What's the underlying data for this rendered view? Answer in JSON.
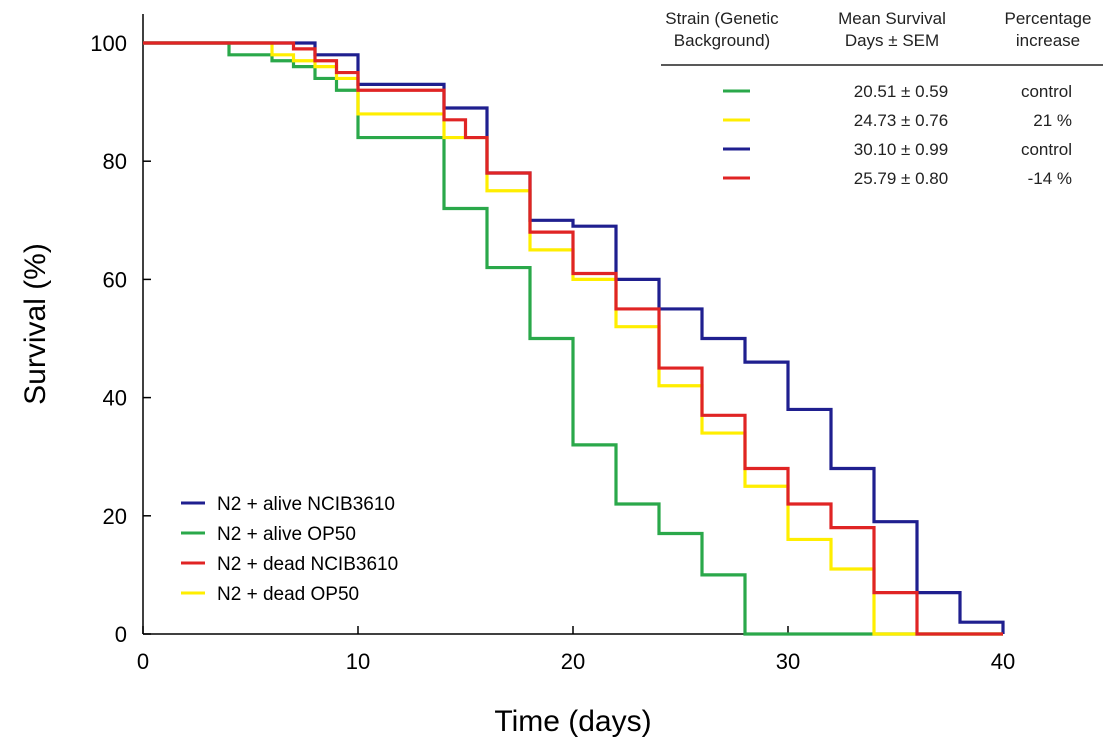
{
  "chart_data": {
    "type": "line",
    "step": true,
    "xlabel": "Time (days)",
    "ylabel": "Survival (%)",
    "xlim": [
      0,
      40
    ],
    "ylim": [
      0,
      100
    ],
    "xticks": [
      "0",
      "10",
      "20",
      "30",
      "40"
    ],
    "yticks": [
      "0",
      "20",
      "40",
      "60",
      "80",
      "100"
    ],
    "grid": false,
    "legend_position": "bottom-left",
    "series": [
      {
        "name": "N2 + alive NCIB3610",
        "color": "#1f1f8f",
        "x": [
          0,
          8,
          9,
          10,
          14,
          16,
          18,
          20,
          22,
          24,
          26,
          28,
          30,
          32,
          34,
          36,
          38,
          40
        ],
        "y": [
          100,
          98,
          98,
          93,
          89,
          78,
          70,
          69,
          60,
          55,
          50,
          46,
          38,
          28,
          19,
          7,
          2,
          0
        ]
      },
      {
        "name": "N2 + alive OP50",
        "color": "#2aa84a",
        "x": [
          0,
          4,
          6,
          7,
          8,
          9,
          10,
          14,
          16,
          18,
          20,
          22,
          24,
          26,
          28,
          40
        ],
        "y": [
          100,
          98,
          97,
          96,
          94,
          92,
          84,
          72,
          62,
          50,
          32,
          22,
          17,
          10,
          0,
          0
        ]
      },
      {
        "name": "N2 + dead NCIB3610",
        "color": "#e02424",
        "x": [
          0,
          7,
          8,
          9,
          10,
          14,
          15,
          16,
          18,
          20,
          22,
          24,
          26,
          28,
          30,
          32,
          34,
          36,
          40
        ],
        "y": [
          100,
          99,
          97,
          95,
          92,
          87,
          84,
          78,
          68,
          61,
          55,
          45,
          37,
          28,
          22,
          18,
          7,
          0,
          0
        ]
      },
      {
        "name": "N2 + dead OP50",
        "color": "#ffee00",
        "x": [
          0,
          6,
          7,
          8,
          9,
          10,
          14,
          16,
          18,
          20,
          22,
          24,
          26,
          28,
          30,
          32,
          34,
          40
        ],
        "y": [
          100,
          98,
          97,
          96,
          94,
          88,
          84,
          75,
          65,
          60,
          52,
          42,
          34,
          25,
          16,
          11,
          0,
          0
        ]
      }
    ],
    "legend": [
      "N2 + alive NCIB3610",
      "N2 + alive OP50",
      "N2 + dead NCIB3610",
      "N2 + dead OP50"
    ],
    "table": {
      "headers": [
        [
          "Strain  (Genetic",
          "Background)"
        ],
        [
          "Mean Survival",
          "Days ± SEM"
        ],
        [
          "Percentage",
          "increase"
        ]
      ],
      "rows": [
        {
          "color": "#2aa84a",
          "mean": "20.51 ± 0.59",
          "increase": "control",
          "increase_color": "#000000"
        },
        {
          "color": "#ffee00",
          "mean": "24.73 ± 0.76",
          "increase": "21 %",
          "increase_color": "#000000"
        },
        {
          "color": "#1f1f8f",
          "mean": "30.10 ± 0.99",
          "increase": "control",
          "increase_color": "#000000"
        },
        {
          "color": "#e02424",
          "mean": "25.79 ± 0.80",
          "increase": "-14 %",
          "increase_color": "#e02424"
        }
      ]
    }
  }
}
